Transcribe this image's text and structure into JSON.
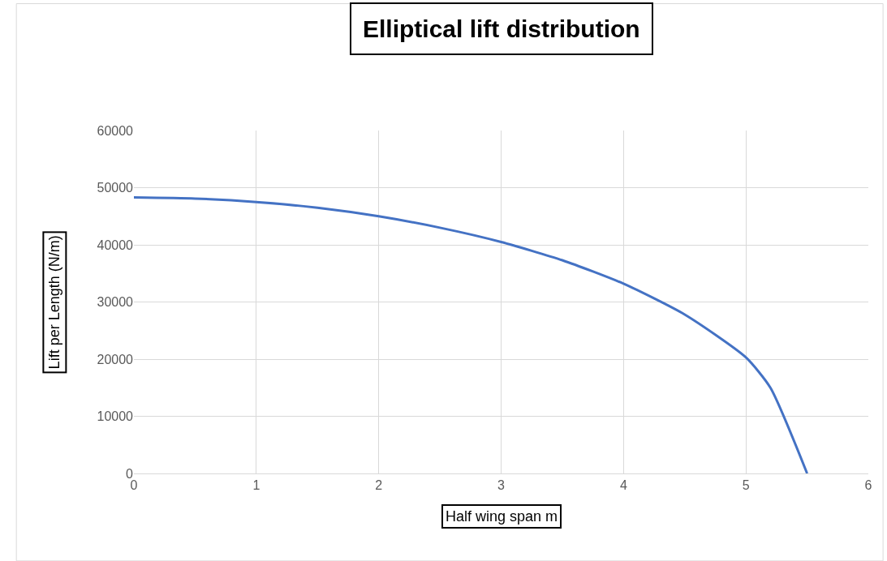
{
  "chart_data": {
    "type": "line",
    "title": "Elliptical lift distribution",
    "xlabel": "Half wing span m",
    "ylabel": "Lift per Length (N/m)",
    "x": [
      0,
      0.5,
      1,
      1.5,
      2,
      2.5,
      3,
      3.5,
      4,
      4.5,
      5,
      5.2,
      5.5
    ],
    "series": [
      {
        "color": "#4472c4",
        "values": [
          48300,
          48100,
          47500,
          46500,
          45000,
          43000,
          40500,
          37300,
          33200,
          27800,
          20300,
          15000,
          0
        ]
      }
    ],
    "xlim": [
      0,
      6
    ],
    "xticks": [
      0,
      1,
      2,
      3,
      4,
      5,
      6
    ],
    "ylim": [
      0,
      60000
    ],
    "yticks": [
      0,
      10000,
      20000,
      30000,
      40000,
      50000,
      60000
    ],
    "grid": true,
    "legend": false,
    "marker": "none",
    "line_style": "solid"
  }
}
